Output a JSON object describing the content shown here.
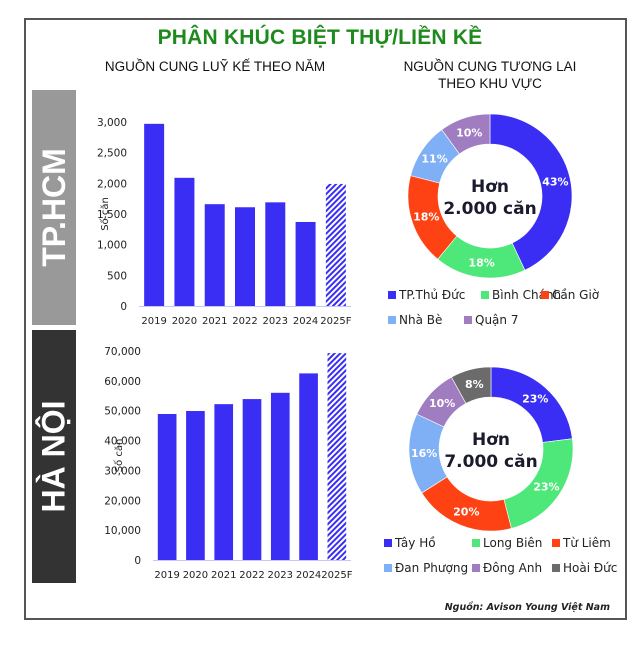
{
  "title": "PHÂN KHÚC BIỆT THỰ/LIỀN KỀ",
  "left_heading": "NGUỒN CUNG LUỸ KẾ THEO NĂM",
  "right_heading_line1": "NGUỒN CUNG TƯƠNG LAI",
  "right_heading_line2": "THEO KHU VỰC",
  "regions": {
    "hcm": {
      "label": "TP.HCM",
      "color": "#999999"
    },
    "hn": {
      "label": "HÀ NỘI",
      "color": "#333333"
    }
  },
  "source": "Nguồn: Avison Young Việt Nam",
  "colors": {
    "bar": "#3a2ef5",
    "title": "#1e8a1e"
  },
  "chart_data": [
    {
      "type": "bar",
      "title": "TP.HCM - Nguồn cung luỹ kế theo năm",
      "categories": [
        "2019",
        "2020",
        "2021",
        "2022",
        "2023",
        "2024",
        "2025F"
      ],
      "values": [
        2970,
        2090,
        1660,
        1610,
        1690,
        1370,
        1990
      ],
      "forecast_index": 6,
      "xlabel": "",
      "ylabel": "Số căn",
      "ylim": [
        0,
        3000
      ],
      "yticks": [
        0,
        500,
        1000,
        1500,
        2000,
        2500,
        3000
      ],
      "ytick_labels": [
        "0",
        "500",
        "1,000",
        "1,500",
        "2,000",
        "2,500",
        "3,000"
      ],
      "grid": false
    },
    {
      "type": "bar",
      "title": "Hà Nội - Nguồn cung luỹ kế theo năm",
      "categories": [
        "2019",
        "2020",
        "2021",
        "2022",
        "2023",
        "2024",
        "2025F"
      ],
      "values": [
        48900,
        49900,
        52200,
        53900,
        56000,
        62500,
        69300
      ],
      "forecast_index": 6,
      "xlabel": "",
      "ylabel": "Số căn",
      "ylim": [
        0,
        70000
      ],
      "yticks": [
        0,
        10000,
        20000,
        30000,
        40000,
        50000,
        60000,
        70000
      ],
      "ytick_labels": [
        "0",
        "10,000",
        "20,000",
        "30,000",
        "40,000",
        "50,000",
        "60,000",
        "70,000"
      ],
      "grid": false
    },
    {
      "type": "pie",
      "style": "donut",
      "title": "TP.HCM - Nguồn cung tương lai theo khu vực",
      "center_text_line1": "Hơn",
      "center_text_line2": "2.000 căn",
      "labels": [
        "TP.Thủ Đức",
        "Bình Chánh",
        "Cần Giờ",
        "Nhà Bè",
        "Quận 7"
      ],
      "values": [
        43,
        18,
        18,
        11,
        10
      ],
      "value_labels": [
        "43%",
        "18%",
        "18%",
        "11%",
        "10%"
      ],
      "colors": [
        "#3a2ef5",
        "#4ee87a",
        "#ff4214",
        "#7fb0f5",
        "#a07cc0"
      ],
      "legend_position": "bottom"
    },
    {
      "type": "pie",
      "style": "donut",
      "title": "Hà Nội - Nguồn cung tương lai theo khu vực",
      "center_text_line1": "Hơn",
      "center_text_line2": "7.000 căn",
      "labels": [
        "Tây Hồ",
        "Long Biên",
        "Từ Liêm",
        "Đan Phượng",
        "Đông Anh",
        "Hoài Đức"
      ],
      "values": [
        23,
        23,
        20,
        16,
        10,
        8
      ],
      "value_labels": [
        "23%",
        "23%",
        "20%",
        "16%",
        "10%",
        "8%"
      ],
      "colors": [
        "#3a2ef5",
        "#4ee87a",
        "#ff4214",
        "#7fb0f5",
        "#a07cc0",
        "#6b6b6b"
      ],
      "legend_position": "bottom"
    }
  ]
}
